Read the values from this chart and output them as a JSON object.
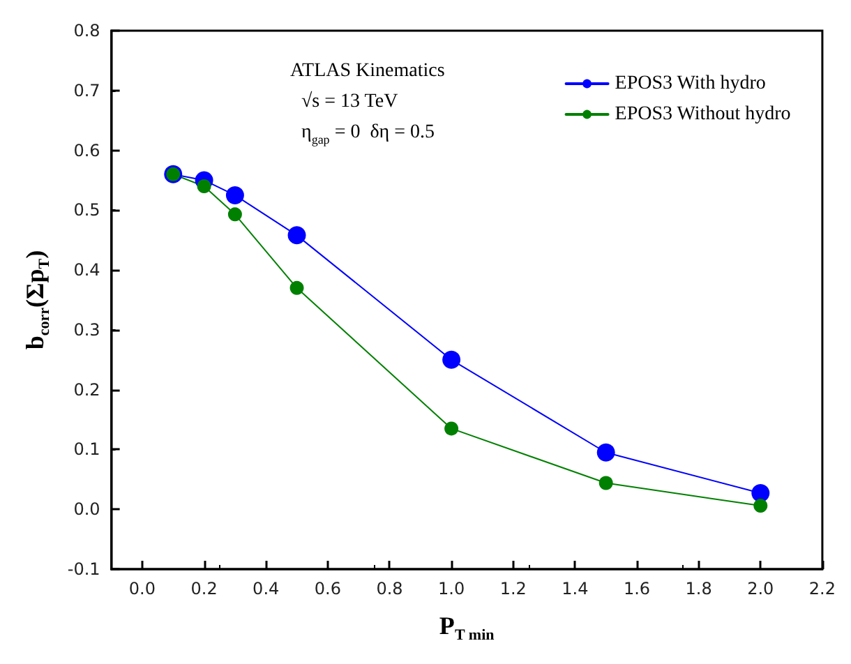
{
  "chart_data": {
    "type": "line",
    "xlabel": "P$_{T min}$",
    "ylabel": "b$_{corr}$(Σp$_{T}$)",
    "x": [
      0.1,
      0.2,
      0.3,
      0.5,
      1.0,
      1.5,
      2.0
    ],
    "series": [
      {
        "name": "EPOS3 With hydro",
        "color": "#0000ff",
        "values": [
          0.56,
          0.55,
          0.525,
          0.458,
          0.25,
          0.095,
          0.027
        ]
      },
      {
        "name": "EPOS3 Without hydro",
        "color": "#008000",
        "values": [
          0.56,
          0.54,
          0.493,
          0.37,
          0.135,
          0.044,
          0.006
        ]
      }
    ],
    "annotations": [
      "ATLAS Kinematics",
      "√s = 13 TeV",
      "η$_{gap}$ = 0  δη = 0.5"
    ],
    "xlim": [
      -0.1,
      2.2
    ],
    "xticks": [
      {
        "value": 0,
        "label": "0.0"
      },
      {
        "value": 0.2,
        "label": "0.2"
      },
      {
        "value": 0.4,
        "label": "0.4"
      },
      {
        "value": 0.6,
        "label": "0.6"
      },
      {
        "value": 0.8,
        "label": "0.8"
      },
      {
        "value": 1,
        "label": "1.0"
      },
      {
        "value": 1.2,
        "label": "1.2"
      },
      {
        "value": 1.4,
        "label": "1.4"
      },
      {
        "value": 1.6,
        "label": "1.6"
      },
      {
        "value": 1.8,
        "label": "1.8"
      },
      {
        "value": 2,
        "label": "2.0"
      },
      {
        "value": 2.2,
        "label": "2.2"
      }
    ],
    "ylim": [
      -0.1,
      0.8
    ],
    "yticks": [
      -0.1,
      {
        "value": 0,
        "label": "0.0"
      },
      0.1,
      0.2,
      0.3,
      0.4,
      0.5,
      0.6,
      0.7,
      0.8
    ],
    "legend": "top right",
    "marker": "circle",
    "line_style": "solid",
    "grid": false
  }
}
